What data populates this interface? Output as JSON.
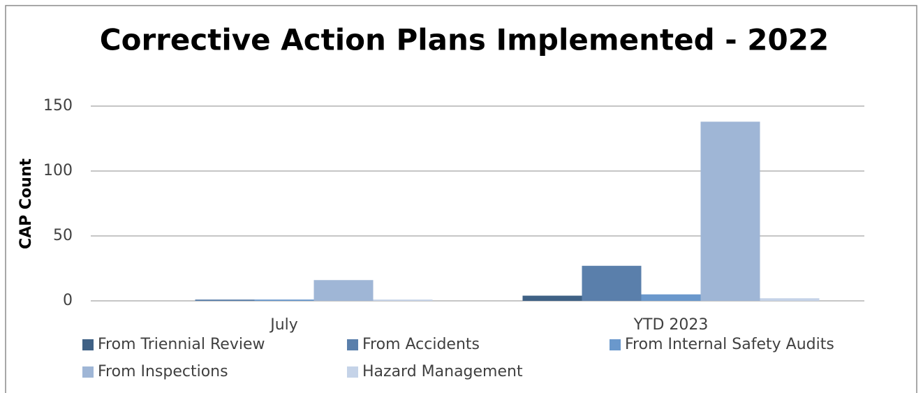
{
  "chart_data": {
    "type": "bar",
    "title": "Corrective Action Plans Implemented - 2022",
    "y_label": "CAP Count",
    "categories": [
      "July",
      "YTD 2023"
    ],
    "series": [
      {
        "name": "From Triennial Review",
        "color": "#3f6185",
        "values": [
          0,
          4
        ]
      },
      {
        "name": "From Accidents",
        "color": "#5a7fab",
        "values": [
          1,
          27
        ]
      },
      {
        "name": "From Internal Safety Audits",
        "color": "#6a98cc",
        "values": [
          1,
          5
        ]
      },
      {
        "name": "From Inspections",
        "color": "#9fb6d6",
        "values": [
          16,
          138
        ]
      },
      {
        "name": "Hazard Management",
        "color": "#c5d3e8",
        "values": [
          1,
          2
        ]
      }
    ],
    "ylim": [
      0,
      150
    ],
    "yticks": [
      0,
      50,
      100,
      150
    ],
    "grid": true,
    "legend": "bottom"
  }
}
